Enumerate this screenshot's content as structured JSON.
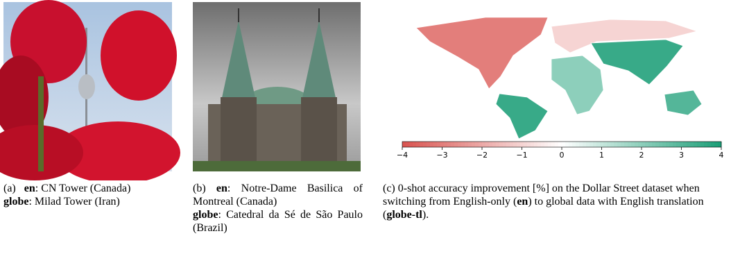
{
  "panel_a": {
    "label": "(a)",
    "en_key": "en",
    "en_text": ": CN Tower (Canada)",
    "globe_key": "globe",
    "globe_text": ": Milad Tower (Iran)"
  },
  "panel_b": {
    "label": "(b)",
    "en_key": "en",
    "en_text": ": Notre-Dame Basilica of Montreal (Canada)",
    "globe_key": "globe",
    "globe_text": ": Catedral da Sé de São Paulo (Brazil)"
  },
  "panel_c": {
    "label": "(c)",
    "caption": [
      {
        "text": "0-shot accuracy improvement [%] on the Dollar Street dataset when switching from English-only (",
        "bold": false
      },
      {
        "text": "en",
        "bold": true
      },
      {
        "text": ") to global data with English translation (",
        "bold": false
      },
      {
        "text": "globe-tl",
        "bold": true
      },
      {
        "text": ").",
        "bold": false
      }
    ],
    "map_values": [
      -3,
      3.5,
      -1,
      2,
      3.5,
      3
    ],
    "colorbar": {
      "lim": [
        -4,
        4
      ],
      "colors": [
        "#d9534f",
        "#ffffff",
        "#1b9e77"
      ],
      "ticks": [
        {
          "value": -4,
          "label": "−4"
        },
        {
          "value": -3,
          "label": "−3"
        },
        {
          "value": -2,
          "label": "−2"
        },
        {
          "value": -1,
          "label": "−1"
        },
        0,
        1,
        2,
        3,
        4
      ]
    }
  }
}
